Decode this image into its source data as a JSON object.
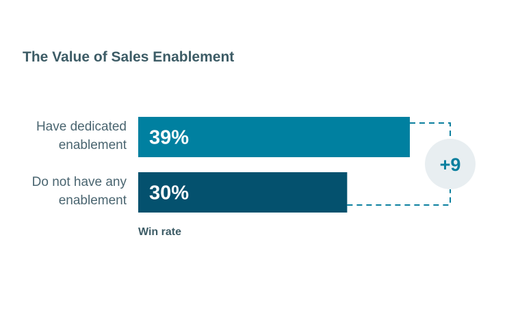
{
  "chart_data": {
    "type": "bar",
    "orientation": "horizontal",
    "title": "The Value of Sales Enablement",
    "categories": [
      [
        "Have dedicated",
        "enablement"
      ],
      [
        "Do not have any",
        "enablement"
      ]
    ],
    "values": [
      39,
      30
    ],
    "value_labels": [
      "39%",
      "30%"
    ],
    "xlabel": "Win rate",
    "ylabel": "",
    "xlim": [
      0,
      50
    ],
    "grid": false,
    "legend": "none",
    "colors": [
      "#0080a0",
      "#04516e"
    ],
    "annotation": {
      "text": "+9",
      "description": "difference between the two bars",
      "bracket_color": "#0a7f9e",
      "circle_color": "#e8eef1"
    }
  }
}
